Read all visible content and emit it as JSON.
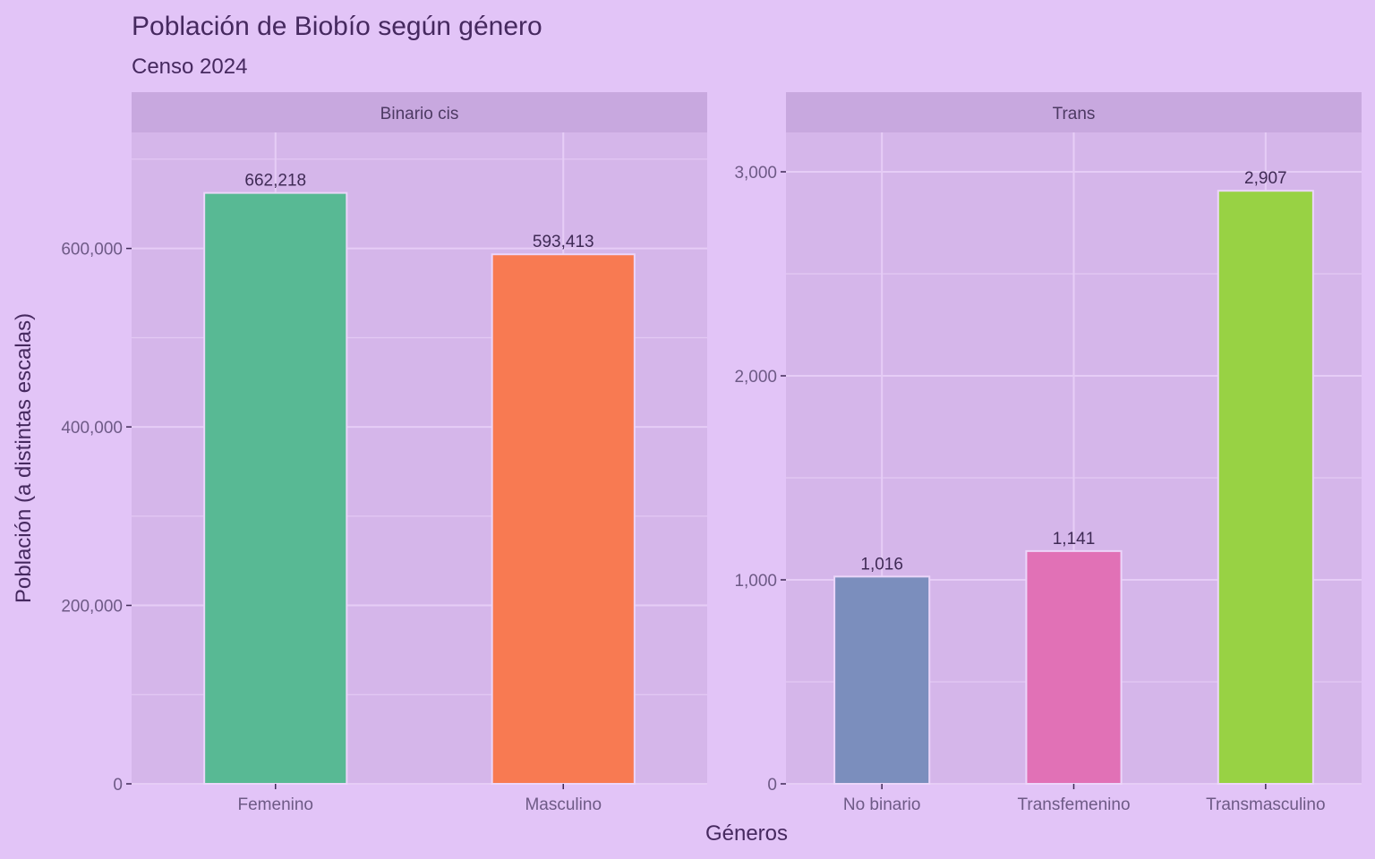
{
  "chart_data": [
    {
      "type": "bar",
      "facet": "Binario cis",
      "categories": [
        "Femenino",
        "Masculino"
      ],
      "values": [
        662218,
        593413
      ],
      "value_labels": [
        "662,218",
        "593,413"
      ],
      "colors": [
        "#58b994",
        "#f87a52"
      ],
      "ylim": [
        0,
        730000
      ],
      "yticks": [
        0,
        200000,
        400000,
        600000
      ],
      "ytick_labels": [
        "0",
        "200,000",
        "400,000",
        "600,000"
      ],
      "minor_step": 100000
    },
    {
      "type": "bar",
      "facet": "Trans",
      "categories": [
        "No binario",
        "Transfemenino",
        "Transmasculino"
      ],
      "values": [
        1016,
        1141,
        2907
      ],
      "value_labels": [
        "1,016",
        "1,141",
        "2,907"
      ],
      "colors": [
        "#7b8ebd",
        "#e171b6",
        "#98d244"
      ],
      "ylim": [
        0,
        3193
      ],
      "yticks": [
        0,
        1000,
        2000,
        3000
      ],
      "ytick_labels": [
        "0",
        "1,000",
        "2,000",
        "3,000"
      ],
      "minor_step": 500
    }
  ],
  "title": "Población de Biobío según género",
  "subtitle": "Censo 2024",
  "xlabel": "Géneros",
  "ylabel": "Población (a distintas escalas)",
  "colors": {
    "background": "#e2c4f7",
    "panel": "#d5b6ea",
    "strip": "#c8a8df",
    "grid": "#e6cdf6"
  }
}
